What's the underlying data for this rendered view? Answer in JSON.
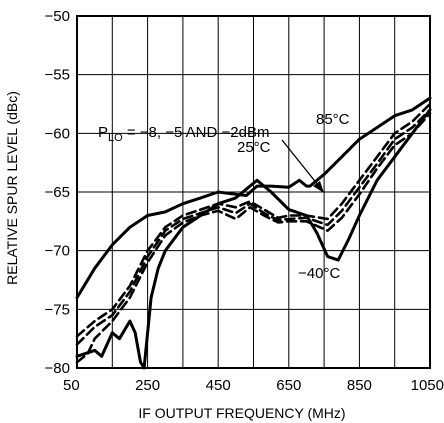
{
  "chart_data": {
    "type": "line",
    "xlabel": "IF OUTPUT FREQUENCY (MHz)",
    "ylabel": "RELATIVE SPUR LEVEL (dBc)",
    "xlim": [
      50,
      1050
    ],
    "ylim": [
      -80,
      -50
    ],
    "x_ticks": [
      "50",
      "250",
      "450",
      "650",
      "850",
      "1050"
    ],
    "y_ticks": [
      "−50",
      "−55",
      "−60",
      "−65",
      "−70",
      "−75",
      "−80"
    ],
    "grid": true,
    "series": [
      {
        "name": "85°C",
        "style": "solid",
        "points": [
          [
            50,
            -74
          ],
          [
            100,
            -71.5
          ],
          [
            150,
            -69.5
          ],
          [
            200,
            -68
          ],
          [
            250,
            -67
          ],
          [
            300,
            -66.7
          ],
          [
            350,
            -66
          ],
          [
            400,
            -65.5
          ],
          [
            450,
            -65
          ],
          [
            500,
            -65.2
          ],
          [
            530,
            -65.3
          ],
          [
            560,
            -64.5
          ],
          [
            600,
            -64.5
          ],
          [
            650,
            -64.6
          ],
          [
            680,
            -64
          ],
          [
            700,
            -64.5
          ],
          [
            710,
            -64.5
          ],
          [
            750,
            -63.5
          ],
          [
            800,
            -62
          ],
          [
            850,
            -60.5
          ],
          [
            900,
            -59.5
          ],
          [
            950,
            -58.5
          ],
          [
            1000,
            -58
          ],
          [
            1050,
            -57
          ]
        ]
      },
      {
        "name": "−40°C",
        "style": "solid",
        "points": [
          [
            50,
            -79
          ],
          [
            100,
            -78.5
          ],
          [
            120,
            -79
          ],
          [
            150,
            -77
          ],
          [
            170,
            -77.5
          ],
          [
            200,
            -76
          ],
          [
            215,
            -77
          ],
          [
            230,
            -79.5
          ],
          [
            240,
            -80
          ],
          [
            250,
            -77
          ],
          [
            260,
            -74
          ],
          [
            280,
            -71.5
          ],
          [
            300,
            -70
          ],
          [
            350,
            -68
          ],
          [
            400,
            -67
          ],
          [
            450,
            -66
          ],
          [
            500,
            -65.5
          ],
          [
            560,
            -64
          ],
          [
            600,
            -65
          ],
          [
            650,
            -66.5
          ],
          [
            700,
            -67
          ],
          [
            730,
            -68.5
          ],
          [
            760,
            -70.5
          ],
          [
            790,
            -70.8
          ],
          [
            820,
            -69
          ],
          [
            850,
            -67
          ],
          [
            900,
            -64
          ],
          [
            950,
            -62
          ],
          [
            1000,
            -60
          ],
          [
            1050,
            -58
          ]
        ]
      },
      {
        "name": "25°C",
        "style": "dashed",
        "points": [
          [
            50,
            -77.3
          ],
          [
            100,
            -76
          ],
          [
            150,
            -75
          ],
          [
            200,
            -73
          ],
          [
            250,
            -70
          ],
          [
            300,
            -68
          ],
          [
            350,
            -67
          ],
          [
            400,
            -66.5
          ],
          [
            450,
            -66
          ],
          [
            500,
            -66.3
          ],
          [
            540,
            -65.8
          ],
          [
            580,
            -66.5
          ],
          [
            620,
            -67.2
          ],
          [
            650,
            -67
          ],
          [
            700,
            -67
          ],
          [
            760,
            -67.3
          ],
          [
            800,
            -66
          ],
          [
            850,
            -64
          ],
          [
            900,
            -62
          ],
          [
            950,
            -60
          ],
          [
            1000,
            -59
          ],
          [
            1050,
            -57.5
          ]
        ]
      },
      {
        "name": "",
        "style": "dashed",
        "points": [
          [
            50,
            -78
          ],
          [
            100,
            -76.5
          ],
          [
            150,
            -75.5
          ],
          [
            200,
            -73.5
          ],
          [
            250,
            -70.5
          ],
          [
            300,
            -68.3
          ],
          [
            350,
            -67.3
          ],
          [
            400,
            -66.8
          ],
          [
            450,
            -66.3
          ],
          [
            500,
            -66.8
          ],
          [
            540,
            -66
          ],
          [
            580,
            -66.8
          ],
          [
            620,
            -67.4
          ],
          [
            650,
            -67.3
          ],
          [
            700,
            -67.2
          ],
          [
            760,
            -67.8
          ],
          [
            800,
            -66.6
          ],
          [
            850,
            -64.6
          ],
          [
            900,
            -62.6
          ],
          [
            950,
            -60.5
          ],
          [
            1000,
            -59.5
          ],
          [
            1050,
            -58
          ]
        ]
      },
      {
        "name": "",
        "style": "dashed",
        "points": [
          [
            50,
            -79.5
          ],
          [
            80,
            -78.8
          ],
          [
            100,
            -77.5
          ],
          [
            150,
            -76
          ],
          [
            200,
            -74
          ],
          [
            250,
            -71
          ],
          [
            300,
            -68.7
          ],
          [
            350,
            -67.6
          ],
          [
            400,
            -67
          ],
          [
            450,
            -66.6
          ],
          [
            500,
            -67.3
          ],
          [
            540,
            -66.3
          ],
          [
            580,
            -67
          ],
          [
            620,
            -67.6
          ],
          [
            650,
            -67.5
          ],
          [
            700,
            -67.5
          ],
          [
            760,
            -68.3
          ],
          [
            800,
            -67.2
          ],
          [
            850,
            -65.2
          ],
          [
            900,
            -63
          ],
          [
            950,
            -61
          ],
          [
            1000,
            -60
          ],
          [
            1050,
            -58.3
          ]
        ]
      }
    ],
    "annotations": {
      "plo_prefix": "P",
      "plo_sub": "LO",
      "plo_rest": " = −8, −5 AND −2dBm",
      "t85": "85°C",
      "t25": "25°C",
      "tm40": "−40°C"
    }
  }
}
